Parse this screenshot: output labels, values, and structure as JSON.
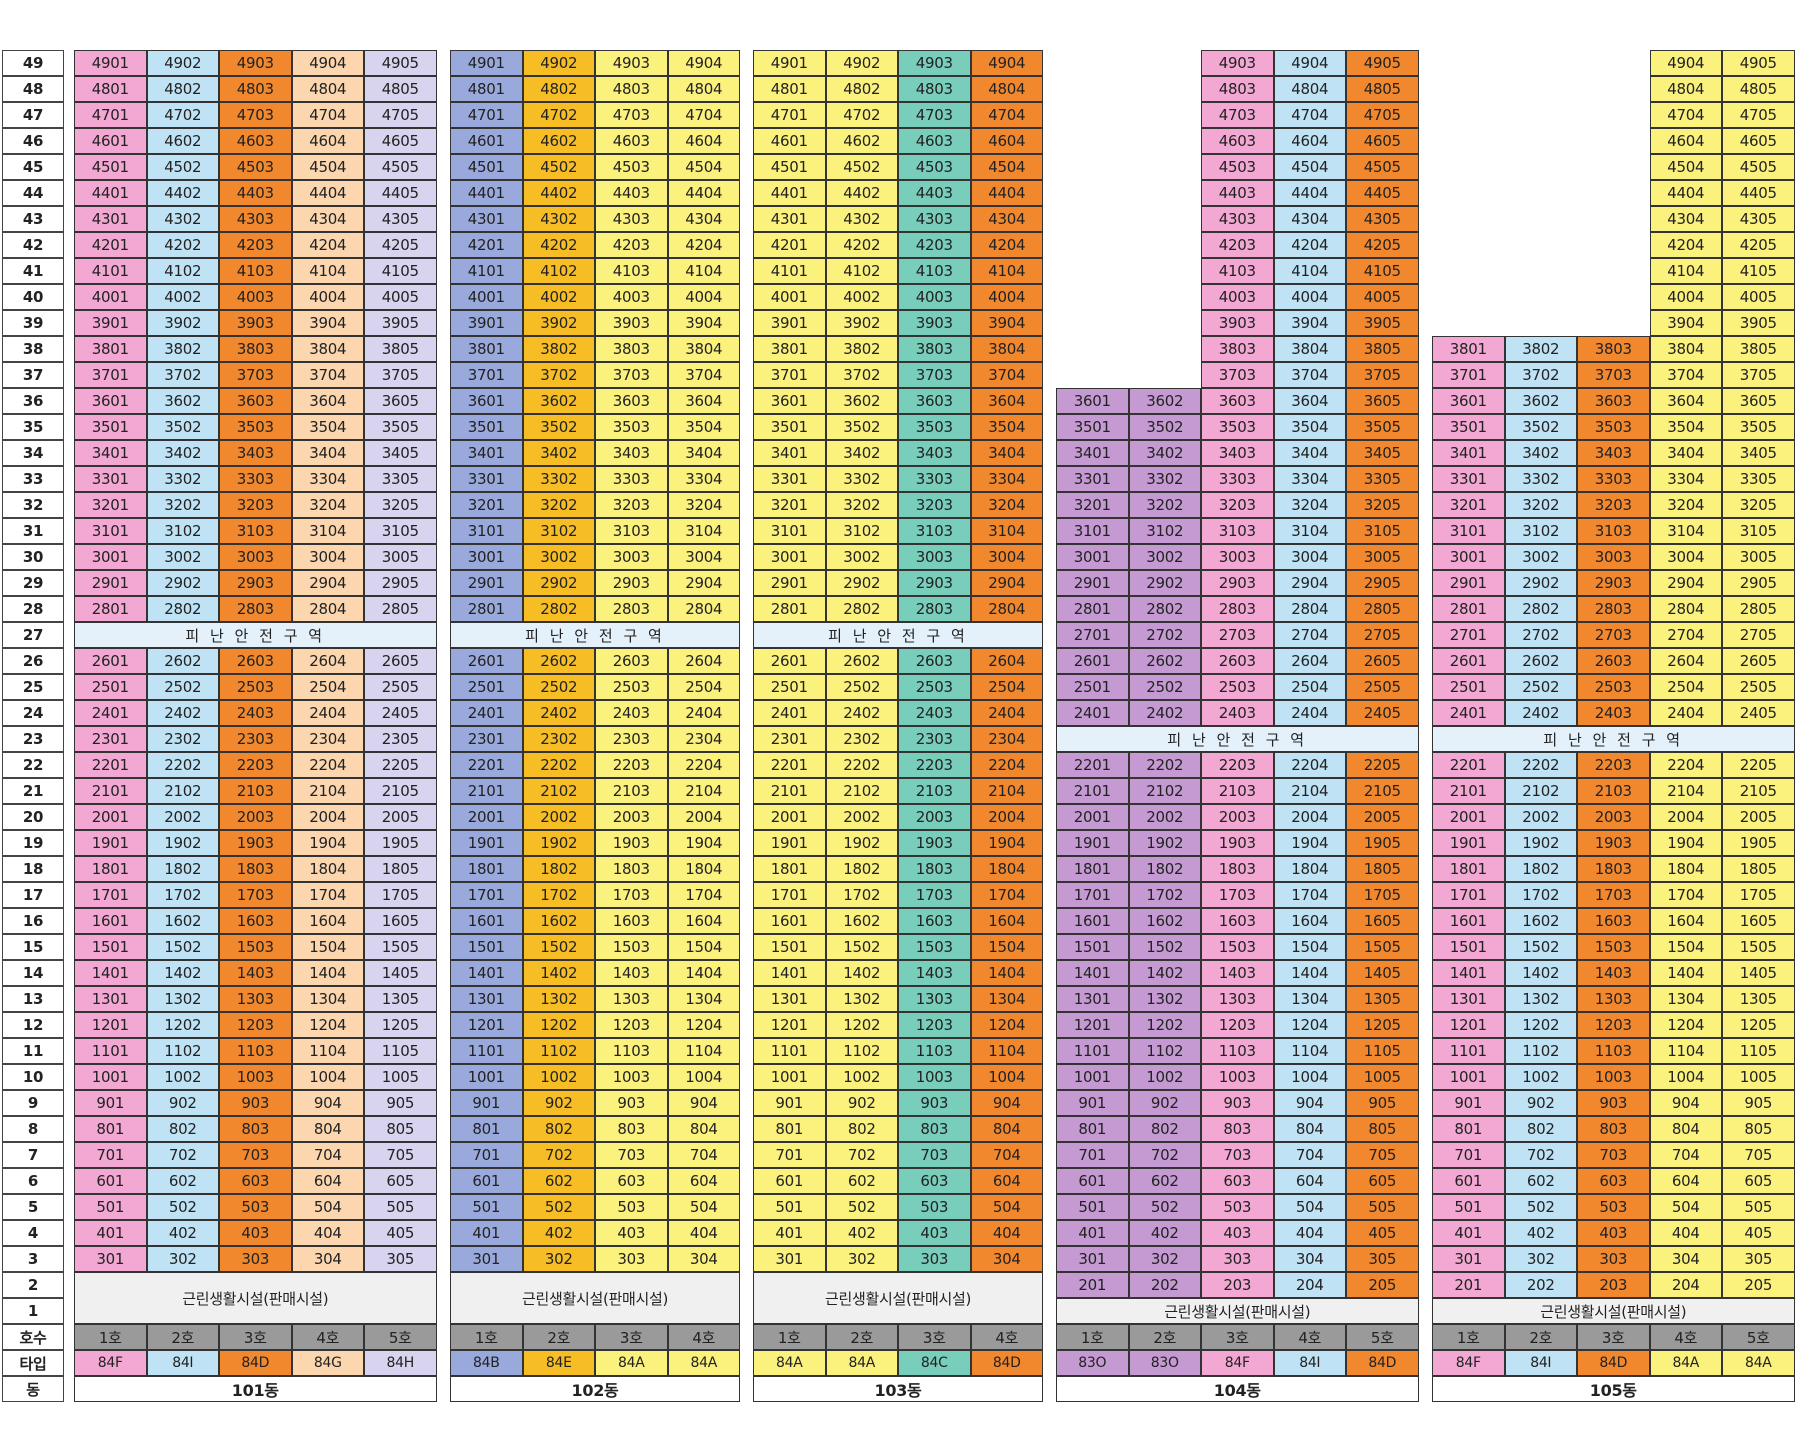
{
  "floors": [
    "49",
    "48",
    "47",
    "46",
    "45",
    "44",
    "43",
    "42",
    "41",
    "40",
    "39",
    "38",
    "37",
    "36",
    "35",
    "34",
    "33",
    "32",
    "31",
    "30",
    "29",
    "28",
    "27",
    "26",
    "25",
    "24",
    "23",
    "22",
    "21",
    "20",
    "19",
    "18",
    "17",
    "16",
    "15",
    "14",
    "13",
    "12",
    "11",
    "10",
    "9",
    "8",
    "7",
    "6",
    "5",
    "4",
    "3",
    "2",
    "1"
  ],
  "row_labels": {
    "hosu": "호수",
    "type": "타입",
    "dong": "동"
  },
  "refuge_label": "피 난 안 전 구 역",
  "retail_label": "근린생활시설(판매시설)",
  "colors": {
    "pink": "#f3a8d4",
    "light_blue": "#bfe3f5",
    "orange": "#f2882e",
    "peach": "#fbd6ae",
    "lavender": "#d8d3ee",
    "periwinkle": "#9aa9dc",
    "gold": "#f7bd25",
    "yellow": "#fbf17d",
    "teal": "#79cdbb",
    "purple": "#c59ad3",
    "refuge": "#e4f1fb",
    "retail": "#f0f0f0",
    "hosu": "#9a9a9a"
  },
  "buildings": [
    {
      "name": "101동",
      "max_floor": 49,
      "refuge_floors": [
        27
      ],
      "retail_floors": [
        1,
        2
      ],
      "units": [
        "1호",
        "2호",
        "3호",
        "4호",
        "5호"
      ],
      "types": [
        "84F",
        "84I",
        "84D",
        "84G",
        "84H"
      ],
      "type_colors": [
        "pink",
        "light_blue",
        "orange",
        "peach",
        "lavender"
      ]
    },
    {
      "name": "102동",
      "max_floor": 49,
      "refuge_floors": [
        27
      ],
      "retail_floors": [
        1,
        2
      ],
      "units": [
        "1호",
        "2호",
        "3호",
        "4호"
      ],
      "types": [
        "84B",
        "84E",
        "84A",
        "84A"
      ],
      "type_colors": [
        "periwinkle",
        "gold",
        "yellow",
        "yellow"
      ]
    },
    {
      "name": "103동",
      "max_floor": 49,
      "refuge_floors": [
        27
      ],
      "retail_floors": [
        1,
        2
      ],
      "units": [
        "1호",
        "2호",
        "3호",
        "4호"
      ],
      "types": [
        "84A",
        "84A",
        "84C",
        "84D"
      ],
      "type_colors": [
        "yellow",
        "yellow",
        "teal",
        "orange"
      ]
    },
    {
      "name": "104동",
      "max_floor": 49,
      "col_max_floor": [
        36,
        36,
        49,
        49,
        49
      ],
      "refuge_floors": [
        23
      ],
      "retail_floors": [
        1
      ],
      "units": [
        "1호",
        "2호",
        "3호",
        "4호",
        "5호"
      ],
      "types": [
        "83O",
        "83O",
        "84F",
        "84I",
        "84D"
      ],
      "type_colors": [
        "purple",
        "purple",
        "pink",
        "light_blue",
        "orange"
      ]
    },
    {
      "name": "105동",
      "max_floor": 49,
      "col_max_floor": [
        38,
        38,
        38,
        49,
        49
      ],
      "refuge_floors": [
        23
      ],
      "retail_floors": [
        1
      ],
      "units": [
        "1호",
        "2호",
        "3호",
        "4호",
        "5호"
      ],
      "types": [
        "84F",
        "84I",
        "84D",
        "84A",
        "84A"
      ],
      "type_colors": [
        "pink",
        "light_blue",
        "orange",
        "yellow",
        "yellow"
      ]
    }
  ]
}
